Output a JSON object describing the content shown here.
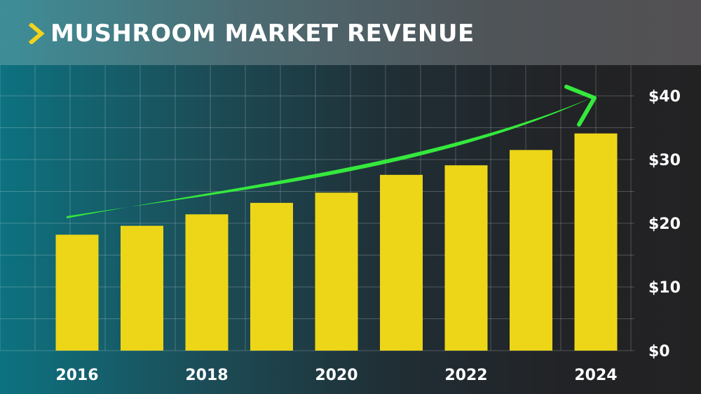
{
  "header": {
    "title": "MUSHROOM MARKET REVENUE"
  },
  "colors": {
    "bar": "#ecd617",
    "trend": "#35e83d",
    "accent_chevron": "#f0d31c",
    "grid": "rgba(255,255,255,0.22)"
  },
  "chart_data": {
    "type": "bar",
    "title": "MUSHROOM MARKET REVENUE",
    "categories": [
      "2016",
      "2017",
      "2018",
      "2019",
      "2020",
      "2021",
      "2022",
      "2023",
      "2024"
    ],
    "values": [
      18.2,
      19.6,
      21.4,
      23.2,
      24.8,
      27.6,
      29.1,
      31.5,
      34.1
    ],
    "x_tick_labels": [
      "2016",
      "",
      "2018",
      "",
      "2020",
      "",
      "2022",
      "",
      "2024"
    ],
    "ylim": [
      0,
      45
    ],
    "y_ticks": [
      0,
      10,
      20,
      30,
      40
    ],
    "y_tick_labels": [
      "$0",
      "$10",
      "$20",
      "$30",
      "$40"
    ],
    "y_axis_side": "right",
    "grid": true,
    "annotation": "upward trend arrow"
  }
}
